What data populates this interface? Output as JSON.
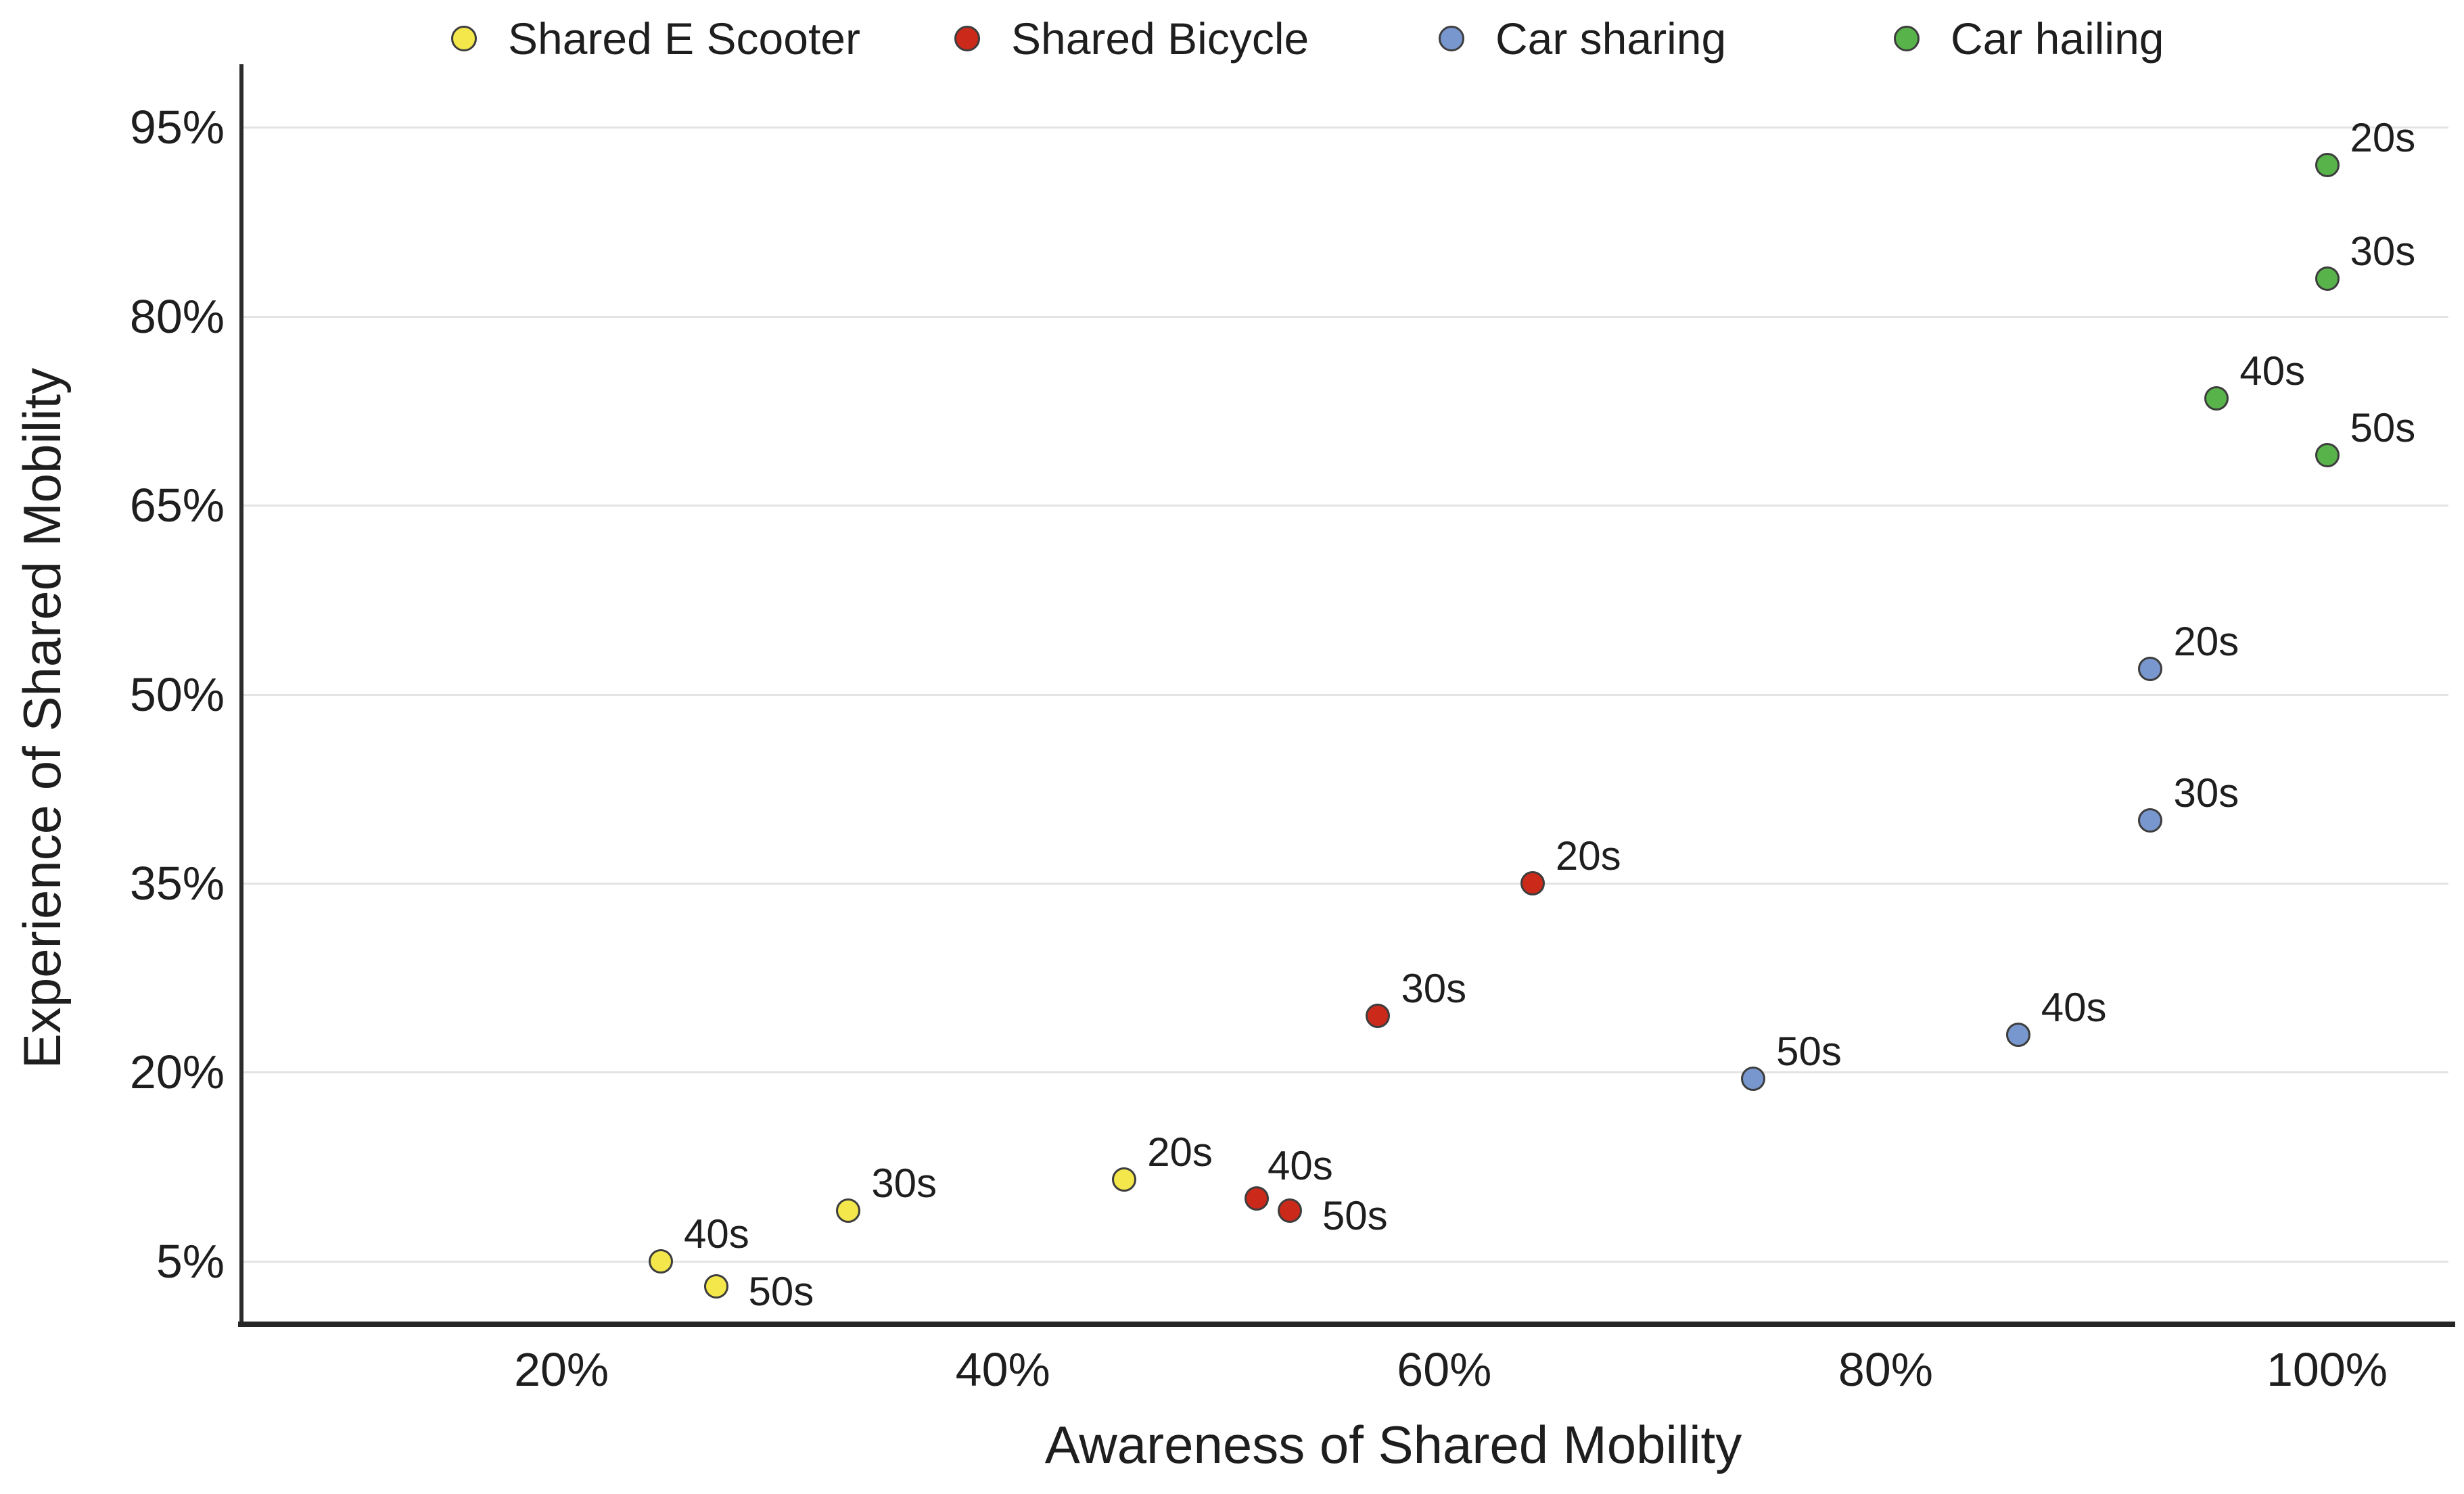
{
  "chart_data": {
    "type": "scatter",
    "title": "",
    "xlabel": "Awareness of Shared Mobility",
    "ylabel": "Experience of Shared Mobility",
    "xlim": [
      5.5,
      105.5
    ],
    "ylim": [
      0,
      100
    ],
    "grid": "horizontal-only",
    "legend_position": "top",
    "x_ticks": [
      {
        "value": 20,
        "label": "20%"
      },
      {
        "value": 40,
        "label": "40%"
      },
      {
        "value": 60,
        "label": "60%"
      },
      {
        "value": 80,
        "label": "80%"
      },
      {
        "value": 100,
        "label": "100%"
      }
    ],
    "y_ticks": [
      {
        "value": 5,
        "label": "5%"
      },
      {
        "value": 20,
        "label": "20%"
      },
      {
        "value": 35,
        "label": "35%"
      },
      {
        "value": 50,
        "label": "50%"
      },
      {
        "value": 65,
        "label": "65%"
      },
      {
        "value": 80,
        "label": "80%"
      },
      {
        "value": 95,
        "label": "95%"
      }
    ],
    "marker": {
      "shape": "circle",
      "stroke": "#3d3d3d"
    },
    "series": [
      {
        "name": "Shared E Scooter",
        "color": "#f3e74b",
        "points": [
          {
            "age": "20s",
            "x": 45.5,
            "y": 11.5,
            "label_pos": "up-right"
          },
          {
            "age": "30s",
            "x": 33,
            "y": 9,
            "label_pos": "up-right"
          },
          {
            "age": "40s",
            "x": 24.5,
            "y": 5,
            "label_pos": "up-right"
          },
          {
            "age": "50s",
            "x": 27,
            "y": 3,
            "label_pos": "right"
          }
        ]
      },
      {
        "name": "Shared Bicycle",
        "color": "#cb2a1b",
        "points": [
          {
            "age": "20s",
            "x": 64,
            "y": 35,
            "label_pos": "up-right"
          },
          {
            "age": "30s",
            "x": 57,
            "y": 24.5,
            "label_pos": "up-right"
          },
          {
            "age": "40s",
            "x": 51.5,
            "y": 10,
            "label_pos": "up"
          },
          {
            "age": "50s",
            "x": 53,
            "y": 9,
            "label_pos": "right"
          }
        ]
      },
      {
        "name": "Car sharing",
        "color": "#7897ce",
        "points": [
          {
            "age": "20s",
            "x": 92,
            "y": 52,
            "label_pos": "up-right"
          },
          {
            "age": "30s",
            "x": 92,
            "y": 40,
            "label_pos": "up-right"
          },
          {
            "age": "40s",
            "x": 86,
            "y": 23,
            "label_pos": "up-right"
          },
          {
            "age": "50s",
            "x": 74,
            "y": 19.5,
            "label_pos": "up-right"
          }
        ]
      },
      {
        "name": "Car hailing",
        "color": "#58b44a",
        "points": [
          {
            "age": "20s",
            "x": 100,
            "y": 92,
            "label_pos": "up-right"
          },
          {
            "age": "30s",
            "x": 100,
            "y": 83,
            "label_pos": "up-right"
          },
          {
            "age": "40s",
            "x": 95,
            "y": 73.5,
            "label_pos": "up-right"
          },
          {
            "age": "50s",
            "x": 100,
            "y": 69,
            "label_pos": "up-right"
          }
        ]
      }
    ]
  },
  "colors": {
    "background": "#ffffff",
    "grid": "#e4e4e4",
    "axis": "#2c2c2c",
    "text": "#1e1e1e",
    "marker_stroke": "#3d3d3d"
  }
}
